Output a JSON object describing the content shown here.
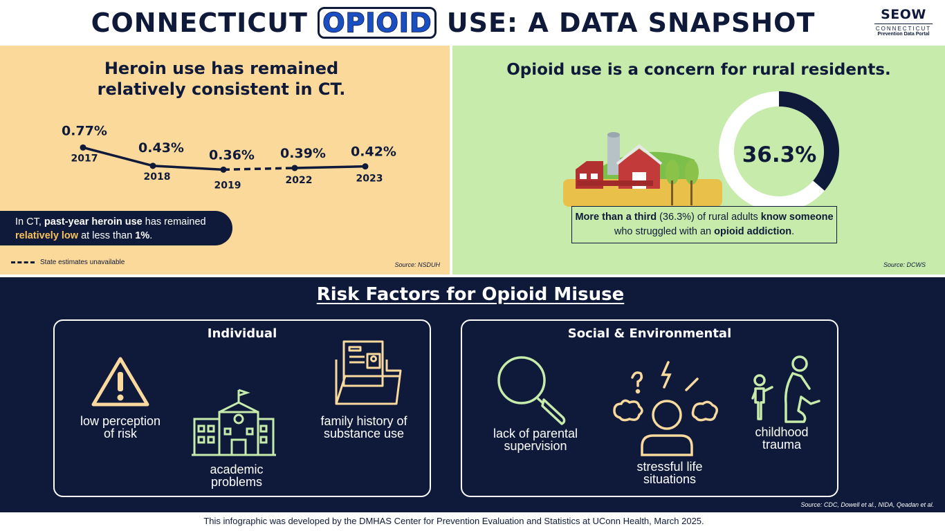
{
  "header": {
    "title_before": "CONNECTICUT",
    "title_highlight": "OPIOID",
    "title_after": "USE: A DATA SNAPSHOT",
    "logo_name": "SEOW",
    "logo_state": "CONNECTICUT",
    "logo_tagline": "Prevention Data Portal"
  },
  "heroin_panel": {
    "title_line1": "Heroin use has remained",
    "title_line2": "relatively consistent in CT.",
    "callout": {
      "part1": "In CT, ",
      "bold1": "past-year heroin use",
      "part2": " has remained ",
      "gold": "relatively low",
      "part3": " at less than ",
      "bold2": "1%",
      "part4": "."
    },
    "legend_label": "State estimates unavailable",
    "source": "Source: NSDUH"
  },
  "chart_data": {
    "type": "line",
    "title": "Heroin use has remained relatively consistent in CT.",
    "categories": [
      "2017",
      "2018",
      "2019",
      "2022",
      "2023"
    ],
    "series": [
      {
        "values": [
          0.77,
          0.43,
          0.36,
          0.39,
          0.42
        ]
      }
    ],
    "data_labels": [
      "0.77%",
      "0.43%",
      "0.36%",
      "0.39%",
      "0.42%"
    ],
    "dashed_segment": [
      "2019",
      "2022"
    ],
    "unit": "%"
  },
  "rural_panel": {
    "title": "Opioid use is a concern for rural residents.",
    "percent_label": "36.3%",
    "percent_value": 36.3,
    "text_bold1": "More than a third",
    "text_part1": " (36.3%) of rural adults ",
    "text_bold2": "know someone",
    "text_part2": " who struggled with an ",
    "text_bold3": "opioid addiction",
    "text_part3": ".",
    "source": "Source: DCWS",
    "colors": {
      "ring_dark": "#0f1a3a",
      "ring_light": "#ffffff"
    }
  },
  "risk": {
    "title": "Risk Factors for Opioid Misuse",
    "individual": {
      "title": "Individual",
      "items": [
        {
          "icon": "warning-icon",
          "label_l1": "low perception",
          "label_l2": "of risk"
        },
        {
          "icon": "school-icon",
          "label_l1": "academic",
          "label_l2": "problems"
        },
        {
          "icon": "folder-icon",
          "label_l1": "family history of",
          "label_l2": "substance use"
        }
      ]
    },
    "social": {
      "title": "Social & Environmental",
      "items": [
        {
          "icon": "magnifier-icon",
          "label_l1": "lack of parental",
          "label_l2": "supervision"
        },
        {
          "icon": "stressed-person-icon",
          "label_l1": "stressful life",
          "label_l2": "situations"
        },
        {
          "icon": "child-adult-icon",
          "label_l1": "childhood",
          "label_l2": "trauma"
        }
      ]
    },
    "source": "Source: CDC, Dowell et al., NIDA, Qeadan et al.",
    "colors": {
      "individual_icons": "#f9d99e",
      "social_icons": "#c6ebaa"
    }
  },
  "footer": {
    "text": "This infographic was developed by the DMHAS Center for Prevention Evaluation and Statistics at UConn Health, March 2025."
  }
}
